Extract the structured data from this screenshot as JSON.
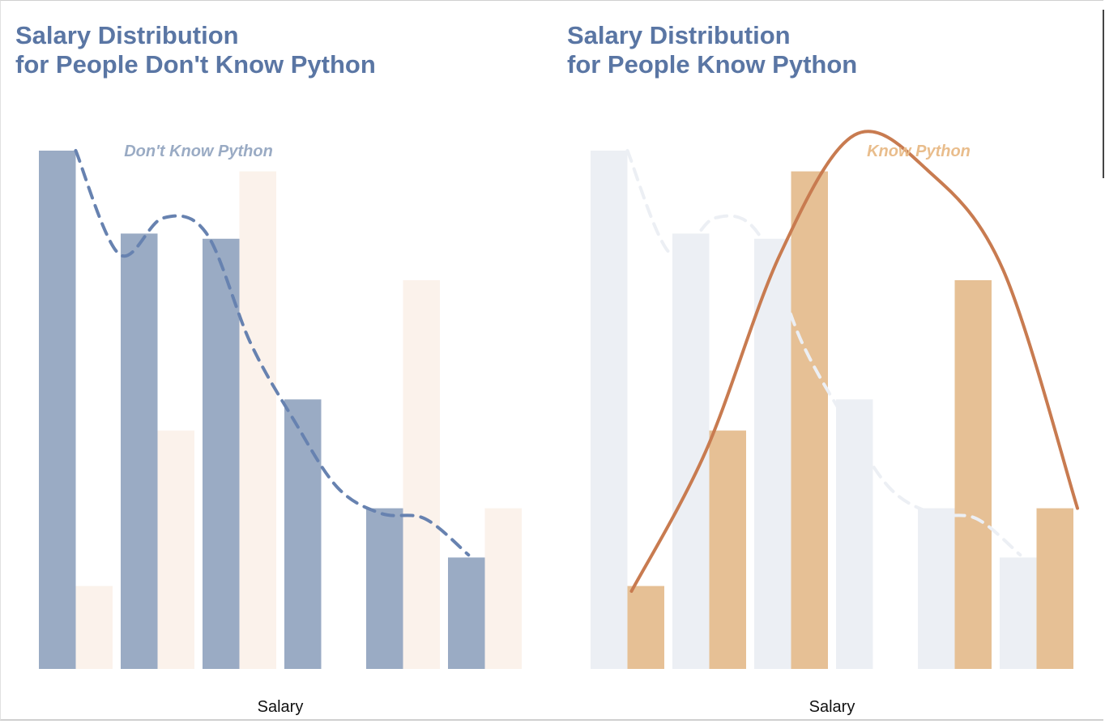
{
  "colors": {
    "title": "#5a76a4",
    "no_python_bar": "#9aabc4",
    "no_python_bar_faded": "#eceff4",
    "no_python_curve": "#6782b0",
    "no_python_label": "#9aabc4",
    "python_bar": "#e6c095",
    "python_bar_faded": "#fbf2eb",
    "python_curve": "#c87b50",
    "python_label": "#e9bd8c"
  },
  "chart_data": [
    {
      "type": "bar",
      "title_lines": [
        "Salary Distribution",
        "for People Don't Know Python"
      ],
      "xlabel": "Salary",
      "ylabel": "",
      "ylim": [
        0,
        100
      ],
      "grid": false,
      "legend": "top",
      "highlight": "Don't Know Python",
      "bins": 6,
      "series": [
        {
          "name": "Don't Know Python",
          "values": [
            100,
            84,
            83,
            52,
            31,
            21.5
          ],
          "style": "solid"
        },
        {
          "name": "Know Python",
          "values": [
            16,
            46,
            96,
            0,
            75,
            31
          ],
          "style": "faded"
        }
      ],
      "curves": [
        {
          "name": "Don't Know Python",
          "style": "dashed",
          "y": [
            100,
            80,
            87,
            84,
            63,
            48,
            35,
            30,
            29,
            22
          ]
        }
      ]
    },
    {
      "type": "bar",
      "title_lines": [
        "Salary Distribution",
        "for People Know Python"
      ],
      "xlabel": "Salary",
      "ylabel": "",
      "ylim": [
        0,
        100
      ],
      "grid": false,
      "legend": "top-right",
      "highlight": "Know Python",
      "bins": 6,
      "series": [
        {
          "name": "Don't Know Python",
          "values": [
            100,
            84,
            83,
            52,
            31,
            21.5
          ],
          "style": "faded"
        },
        {
          "name": "Know Python",
          "values": [
            16,
            46,
            96,
            0,
            75,
            31
          ],
          "style": "solid"
        }
      ],
      "curves": [
        {
          "name": "Don't Know Python",
          "style": "dashed-faded",
          "y": [
            100,
            80,
            87,
            84,
            63,
            48,
            35,
            30,
            29,
            22
          ]
        },
        {
          "name": "Know Python",
          "style": "solid",
          "y": [
            15,
            42,
            80,
            103,
            96,
            77,
            31
          ]
        }
      ]
    }
  ]
}
